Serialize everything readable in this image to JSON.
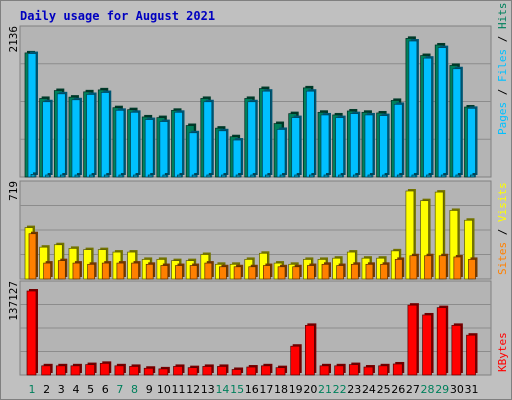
{
  "title": "Daily usage for August 2021",
  "colors": {
    "background": "#c0c0c0",
    "plot": "#b4b4b4",
    "title": "#0000c0",
    "hits": "#00805c",
    "files": "#00c0ff",
    "pages": "#00a0c8",
    "visits": "#ffff00",
    "sites": "#ff8000",
    "kbytes": "#ff0000",
    "weekend_label": "#00805c",
    "weekday_label": "#000000"
  },
  "chart_data": [
    {
      "type": "bar",
      "panel": "top",
      "max_label": "2136",
      "ylim": [
        0,
        2136
      ],
      "legend": [
        "Pages",
        "Files",
        "Hits"
      ],
      "categories": [
        "1",
        "2",
        "3",
        "4",
        "5",
        "6",
        "7",
        "8",
        "9",
        "10",
        "11",
        "12",
        "13",
        "14",
        "15",
        "16",
        "17",
        "18",
        "19",
        "20",
        "21",
        "22",
        "23",
        "24",
        "25",
        "26",
        "27",
        "28",
        "29",
        "30",
        "31"
      ],
      "weekend_days": [
        "1",
        "7",
        "8",
        "14",
        "15",
        "21",
        "22",
        "28",
        "29"
      ],
      "series": [
        {
          "name": "Hits",
          "values": [
            1880,
            1190,
            1310,
            1210,
            1290,
            1320,
            1050,
            1020,
            910,
            900,
            1010,
            780,
            1190,
            740,
            610,
            1190,
            1340,
            810,
            960,
            1350,
            980,
            940,
            1000,
            980,
            970,
            1160,
            2100,
            1840,
            2000,
            1690,
            1060
          ]
        },
        {
          "name": "Files",
          "values": [
            1870,
            1140,
            1260,
            1170,
            1250,
            1280,
            1010,
            980,
            870,
            840,
            980,
            670,
            1140,
            700,
            560,
            1140,
            1300,
            720,
            900,
            1300,
            940,
            900,
            960,
            940,
            930,
            1100,
            2060,
            1800,
            1960,
            1640,
            1040
          ]
        },
        {
          "name": "Pages",
          "values": [
            40,
            30,
            30,
            30,
            30,
            30,
            30,
            30,
            30,
            30,
            30,
            30,
            30,
            30,
            30,
            30,
            30,
            30,
            30,
            30,
            30,
            30,
            30,
            30,
            30,
            30,
            30,
            30,
            30,
            30,
            30
          ]
        }
      ]
    },
    {
      "type": "bar",
      "panel": "middle",
      "max_label": "719",
      "ylim": [
        0,
        719
      ],
      "legend": [
        "Sites",
        "Visits"
      ],
      "categories": [
        "1",
        "2",
        "3",
        "4",
        "5",
        "6",
        "7",
        "8",
        "9",
        "10",
        "11",
        "12",
        "13",
        "14",
        "15",
        "16",
        "17",
        "18",
        "19",
        "20",
        "21",
        "22",
        "23",
        "24",
        "25",
        "26",
        "27",
        "28",
        "29",
        "30",
        "31"
      ],
      "series": [
        {
          "name": "Visits",
          "values": [
            420,
            260,
            280,
            250,
            240,
            240,
            220,
            220,
            160,
            160,
            150,
            150,
            200,
            120,
            120,
            160,
            210,
            130,
            120,
            160,
            160,
            170,
            220,
            170,
            170,
            230,
            719,
            640,
            710,
            560,
            480
          ]
        },
        {
          "name": "Sites",
          "values": [
            370,
            130,
            150,
            130,
            120,
            130,
            130,
            130,
            120,
            110,
            110,
            110,
            130,
            100,
            100,
            100,
            110,
            100,
            100,
            110,
            120,
            110,
            120,
            120,
            120,
            160,
            190,
            190,
            190,
            180,
            160
          ]
        }
      ]
    },
    {
      "type": "bar",
      "panel": "bottom",
      "max_label": "137127",
      "ylim": [
        0,
        137127
      ],
      "legend": [
        "KBytes"
      ],
      "categories": [
        "1",
        "2",
        "3",
        "4",
        "5",
        "6",
        "7",
        "8",
        "9",
        "10",
        "11",
        "12",
        "13",
        "14",
        "15",
        "16",
        "17",
        "18",
        "19",
        "20",
        "21",
        "22",
        "23",
        "24",
        "25",
        "26",
        "27",
        "28",
        "29",
        "30",
        "31"
      ],
      "series": [
        {
          "name": "KBytes",
          "values": [
            137127,
            15000,
            15000,
            15000,
            17000,
            19000,
            15000,
            14000,
            11000,
            10000,
            14000,
            12000,
            14000,
            14000,
            9000,
            13000,
            15000,
            12000,
            47000,
            81000,
            15000,
            15000,
            17000,
            13000,
            15000,
            18000,
            114000,
            98000,
            110000,
            81000,
            65000
          ]
        }
      ]
    }
  ]
}
